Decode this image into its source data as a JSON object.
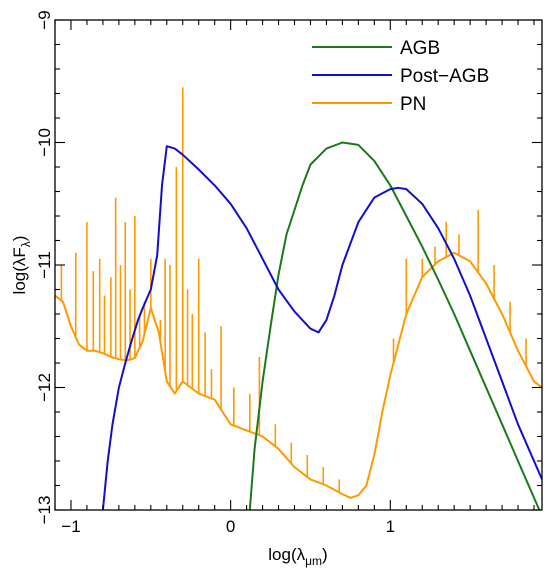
{
  "chart_data": {
    "type": "line",
    "xlabel_main": "log(λ",
    "xlabel_sub": "μm",
    "xlabel_close": ")",
    "ylabel_main": "log(λF",
    "ylabel_sub": "λ",
    "ylabel_close": ")",
    "xlim": [
      -1.1,
      1.95
    ],
    "ylim": [
      -13,
      -9
    ],
    "xticks": [
      -1,
      0,
      1
    ],
    "xtick_labels": [
      "−1",
      "0",
      "1"
    ],
    "yticks": [
      -9,
      -10,
      -11,
      -12,
      -13
    ],
    "ytick_labels": [
      "−9",
      "−10",
      "−11",
      "−12",
      "−13"
    ],
    "legend_position": "top-right",
    "series": [
      {
        "name": "AGB",
        "color": "#1a7a1a",
        "x": [
          0.12,
          0.15,
          0.2,
          0.25,
          0.3,
          0.35,
          0.4,
          0.45,
          0.5,
          0.6,
          0.7,
          0.8,
          0.9,
          1.0,
          1.1,
          1.2,
          1.3,
          1.4,
          1.5,
          1.6,
          1.7,
          1.8,
          1.95
        ],
        "y": [
          -13,
          -12.5,
          -11.95,
          -11.5,
          -11.08,
          -10.75,
          -10.55,
          -10.35,
          -10.18,
          -10.05,
          -10.0,
          -10.02,
          -10.15,
          -10.35,
          -10.6,
          -10.85,
          -11.12,
          -11.4,
          -11.7,
          -12.0,
          -12.3,
          -12.6,
          -13.05
        ]
      },
      {
        "name": "Post−AGB",
        "color": "#1010cc",
        "x": [
          -0.8,
          -0.77,
          -0.74,
          -0.7,
          -0.66,
          -0.62,
          -0.58,
          -0.55,
          -0.5,
          -0.46,
          -0.43,
          -0.4,
          -0.35,
          -0.3,
          -0.2,
          -0.1,
          0.0,
          0.1,
          0.2,
          0.3,
          0.4,
          0.5,
          0.55,
          0.6,
          0.65,
          0.7,
          0.8,
          0.9,
          1.0,
          1.05,
          1.1,
          1.2,
          1.3,
          1.4,
          1.5,
          1.6,
          1.7,
          1.8,
          1.95
        ],
        "y": [
          -13,
          -12.6,
          -12.3,
          -12.0,
          -11.8,
          -11.62,
          -11.45,
          -11.35,
          -11.2,
          -10.92,
          -10.35,
          -10.03,
          -10.05,
          -10.1,
          -10.22,
          -10.35,
          -10.5,
          -10.7,
          -10.95,
          -11.2,
          -11.38,
          -11.52,
          -11.55,
          -11.45,
          -11.25,
          -11.0,
          -10.65,
          -10.45,
          -10.38,
          -10.37,
          -10.38,
          -10.5,
          -10.7,
          -10.95,
          -11.25,
          -11.6,
          -11.95,
          -12.3,
          -12.75
        ]
      },
      {
        "name": "PN",
        "color": "#ff9900",
        "x": [
          -1.1,
          -1.05,
          -1.0,
          -0.95,
          -0.9,
          -0.85,
          -0.8,
          -0.75,
          -0.7,
          -0.65,
          -0.6,
          -0.55,
          -0.5,
          -0.45,
          -0.4,
          -0.35,
          -0.3,
          -0.25,
          -0.2,
          -0.1,
          0.0,
          0.1,
          0.2,
          0.3,
          0.4,
          0.5,
          0.6,
          0.7,
          0.75,
          0.8,
          0.85,
          0.9,
          0.95,
          1.0,
          1.1,
          1.2,
          1.3,
          1.4,
          1.5,
          1.6,
          1.7,
          1.8,
          1.9,
          1.95
        ],
        "y": [
          -11.25,
          -11.3,
          -11.5,
          -11.65,
          -11.7,
          -11.7,
          -11.72,
          -11.75,
          -11.77,
          -11.78,
          -11.76,
          -11.62,
          -11.35,
          -11.55,
          -11.95,
          -12.05,
          -11.95,
          -12.0,
          -12.05,
          -12.1,
          -12.3,
          -12.35,
          -12.4,
          -12.5,
          -12.65,
          -12.75,
          -12.8,
          -12.87,
          -12.9,
          -12.88,
          -12.8,
          -12.55,
          -12.2,
          -11.9,
          -11.4,
          -11.1,
          -10.97,
          -10.9,
          -10.97,
          -11.15,
          -11.4,
          -11.7,
          -11.95,
          -12.0
        ]
      }
    ],
    "pn_emission_lines": [
      {
        "x": -1.06,
        "y": -11.0
      },
      {
        "x": -0.97,
        "y": -10.9
      },
      {
        "x": -0.9,
        "y": -10.65
      },
      {
        "x": -0.86,
        "y": -11.05
      },
      {
        "x": -0.82,
        "y": -10.95
      },
      {
        "x": -0.79,
        "y": -11.25
      },
      {
        "x": -0.75,
        "y": -11.1
      },
      {
        "x": -0.72,
        "y": -10.45
      },
      {
        "x": -0.69,
        "y": -11.0
      },
      {
        "x": -0.66,
        "y": -10.65
      },
      {
        "x": -0.63,
        "y": -11.2
      },
      {
        "x": -0.6,
        "y": -10.6
      },
      {
        "x": -0.57,
        "y": -11.4
      },
      {
        "x": -0.54,
        "y": -11.3
      },
      {
        "x": -0.5,
        "y": -10.95
      },
      {
        "x": -0.44,
        "y": -11.45
      },
      {
        "x": -0.41,
        "y": -10.95
      },
      {
        "x": -0.38,
        "y": -11.0
      },
      {
        "x": -0.34,
        "y": -10.2
      },
      {
        "x": -0.3,
        "y": -9.55
      },
      {
        "x": -0.27,
        "y": -11.2
      },
      {
        "x": -0.24,
        "y": -11.4
      },
      {
        "x": -0.2,
        "y": -10.95
      },
      {
        "x": -0.16,
        "y": -11.55
      },
      {
        "x": -0.12,
        "y": -11.85
      },
      {
        "x": -0.06,
        "y": -11.5
      },
      {
        "x": 0.02,
        "y": -12.0
      },
      {
        "x": 0.12,
        "y": -12.05
      },
      {
        "x": 0.18,
        "y": -11.75
      },
      {
        "x": 0.28,
        "y": -12.3
      },
      {
        "x": 0.38,
        "y": -12.45
      },
      {
        "x": 0.48,
        "y": -12.55
      },
      {
        "x": 0.58,
        "y": -12.65
      },
      {
        "x": 0.68,
        "y": -12.75
      },
      {
        "x": 1.02,
        "y": -11.6
      },
      {
        "x": 1.1,
        "y": -10.95
      },
      {
        "x": 1.2,
        "y": -10.95
      },
      {
        "x": 1.28,
        "y": -10.85
      },
      {
        "x": 1.35,
        "y": -10.65
      },
      {
        "x": 1.43,
        "y": -10.75
      },
      {
        "x": 1.55,
        "y": -10.55
      },
      {
        "x": 1.65,
        "y": -11.0
      },
      {
        "x": 1.75,
        "y": -11.3
      },
      {
        "x": 1.85,
        "y": -11.6
      }
    ]
  }
}
